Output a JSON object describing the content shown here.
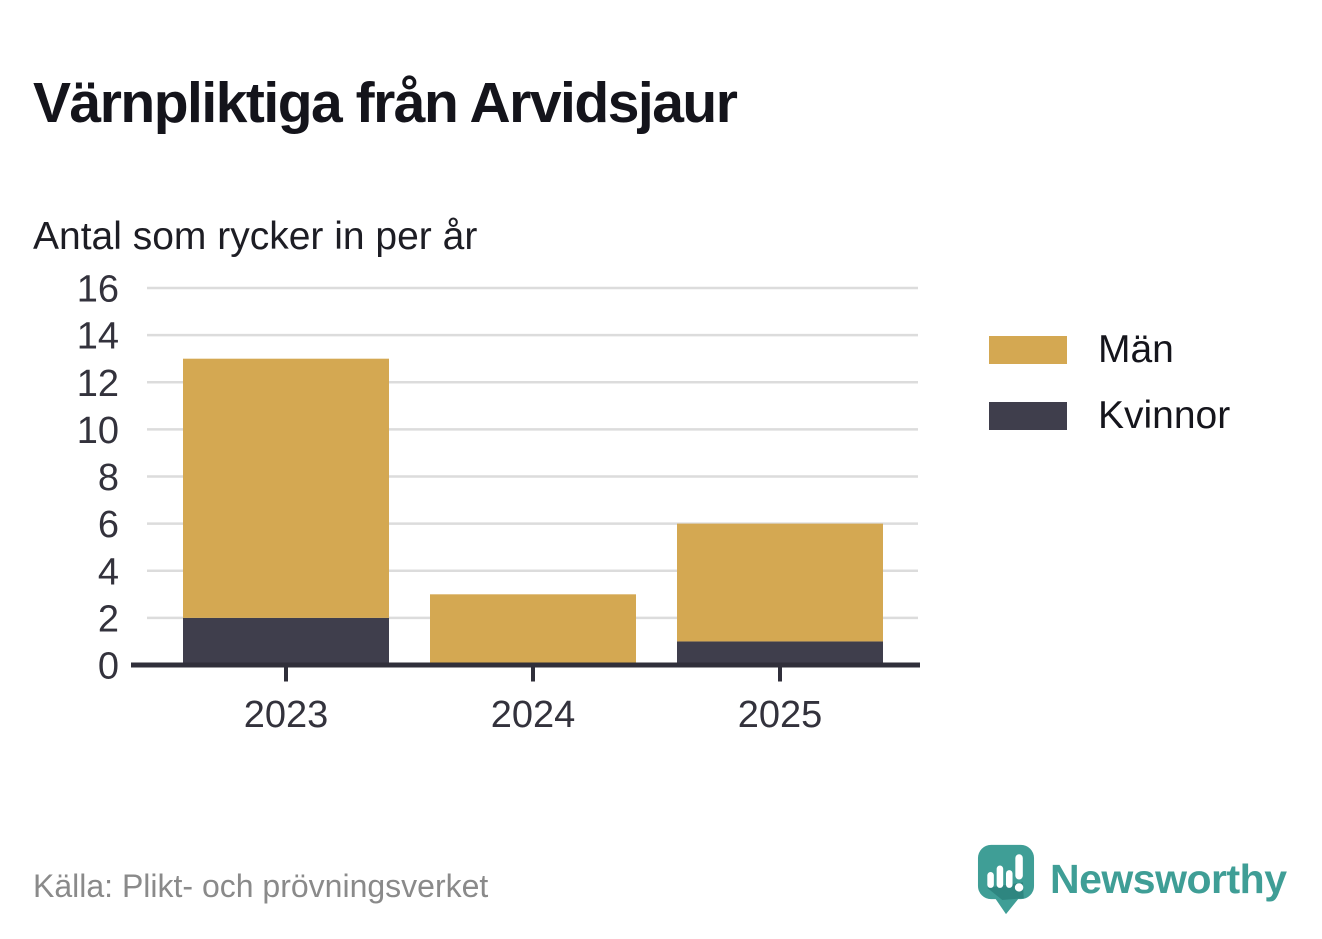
{
  "header": {
    "title": "Värnpliktiga från Arvidsjaur",
    "subtitle": "Antal som rycker in per år"
  },
  "chart_data": {
    "type": "bar",
    "stacked": true,
    "title": "Värnpliktiga från Arvidsjaur",
    "subtitle": "Antal som rycker in per år",
    "categories": [
      "2023",
      "2024",
      "2025"
    ],
    "series": [
      {
        "name": "Män",
        "color": "#d4a852",
        "values": [
          11,
          3,
          5
        ]
      },
      {
        "name": "Kvinnor",
        "color": "#3f3e4c",
        "values": [
          2,
          0,
          1
        ]
      }
    ],
    "stack_totals": [
      13,
      3,
      6
    ],
    "xlabel": "",
    "ylabel": "",
    "ylim": [
      0,
      16
    ],
    "yticks": [
      0,
      2,
      4,
      6,
      8,
      10,
      12,
      14,
      16
    ],
    "grid": true,
    "legend_position": "right"
  },
  "footer": {
    "source": "Källa: Plikt- och prövningsverket",
    "brand": "Newsworthy"
  },
  "colors": {
    "men_bar": "#d4a852",
    "women_bar": "#3f3e4c",
    "axis": "#302f3a",
    "gridline": "#dcdcdc",
    "tick_label": "#33323c",
    "source_text": "#8a8a8a",
    "brand_teal": "#3f9e96"
  }
}
